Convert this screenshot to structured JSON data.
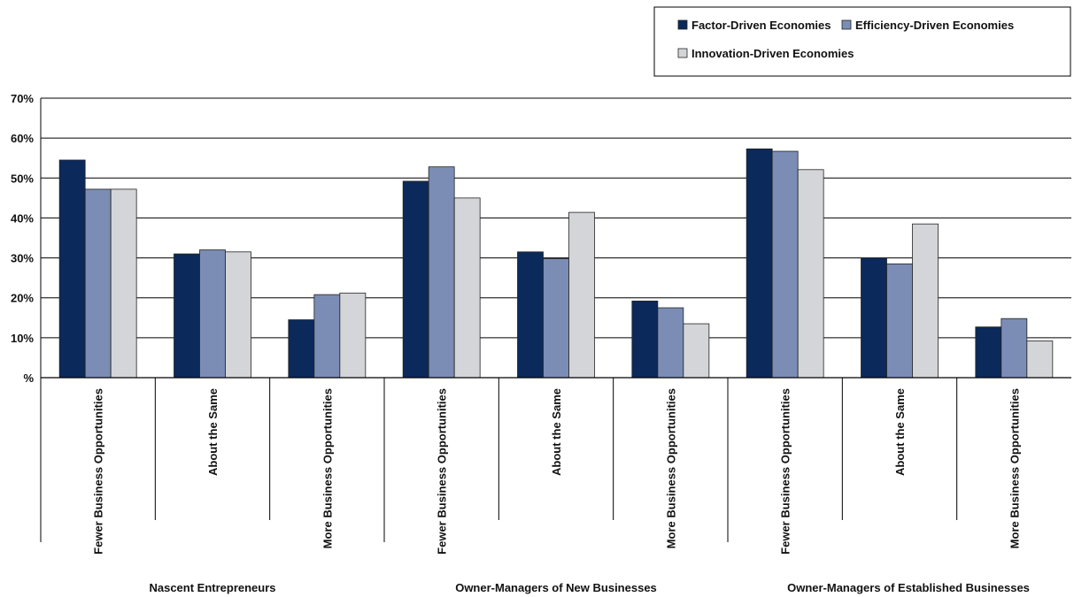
{
  "chart_data": {
    "type": "bar",
    "ylim": [
      0,
      70
    ],
    "yticks": [
      "%",
      "10%",
      "20%",
      "30%",
      "40%",
      "50%",
      "60%",
      "70%"
    ],
    "grid": true,
    "legend_position": "top-right",
    "categories": [
      "Fewer Business Opportunities",
      "About the Same",
      "More Business Opportunities",
      "Fewer Business Opportunities",
      "About the Same",
      "More Business Opportunities",
      "Fewer Business Opportunities",
      "About the Same",
      "More Business Opportunities"
    ],
    "groups": [
      "Nascent Entrepreneurs",
      "Owner-Managers of New Businesses",
      "Owner-Managers of Established Businesses"
    ],
    "series": [
      {
        "name": "Factor-Driven Economies",
        "color": "#0b2a5b",
        "values": [
          54.5,
          31,
          14.5,
          49.2,
          31.5,
          19.2,
          57.3,
          30,
          12.7
        ]
      },
      {
        "name": "Efficiency-Driven Economies",
        "color": "#7b8db5",
        "values": [
          47.2,
          32,
          20.8,
          52.8,
          29.8,
          17.5,
          56.7,
          28.5,
          14.8
        ]
      },
      {
        "name": "Innovation-Driven Economies",
        "color": "#d4d5d8",
        "values": [
          47.2,
          31.5,
          21.2,
          45,
          41.4,
          13.5,
          52.1,
          38.5,
          9.2
        ]
      }
    ]
  }
}
